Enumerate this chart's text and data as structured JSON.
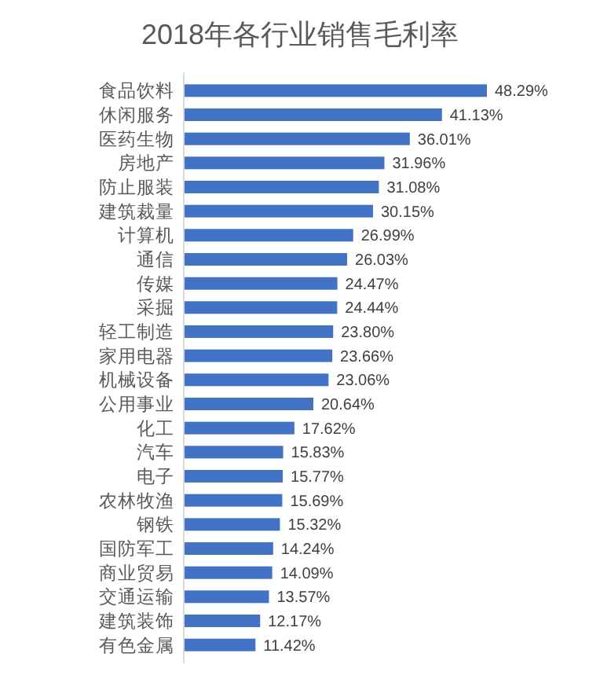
{
  "chart_data": {
    "type": "bar",
    "orientation": "horizontal",
    "title": "2018年各行业销售毛利率",
    "color": "#4472c4",
    "categories": [
      "食品饮料",
      "休闲服务",
      "医药生物",
      "房地产",
      "防止服装",
      "建筑裁量",
      "计算机",
      "通信",
      "传媒",
      "采掘",
      "轻工制造",
      "家用电器",
      "机械设备",
      "公用事业",
      "化工",
      "汽车",
      "电子",
      "农林牧渔",
      "钢铁",
      "国防军工",
      "商业贸易",
      "交通运输",
      "建筑装饰",
      "有色金属"
    ],
    "values": [
      48.29,
      41.13,
      36.01,
      31.96,
      31.08,
      30.15,
      26.99,
      26.03,
      24.47,
      24.44,
      23.8,
      23.66,
      23.06,
      20.64,
      17.62,
      15.83,
      15.77,
      15.69,
      15.32,
      14.24,
      14.09,
      13.57,
      12.17,
      11.42
    ],
    "value_labels": [
      "48.29%",
      "41.13%",
      "36.01%",
      "31.96%",
      "31.08%",
      "30.15%",
      "26.99%",
      "26.03%",
      "24.47%",
      "24.44%",
      "23.80%",
      "23.66%",
      "23.06%",
      "20.64%",
      "17.62%",
      "15.83%",
      "15.77%",
      "15.69%",
      "15.32%",
      "14.24%",
      "14.09%",
      "13.57%",
      "12.17%",
      "11.42%"
    ]
  }
}
